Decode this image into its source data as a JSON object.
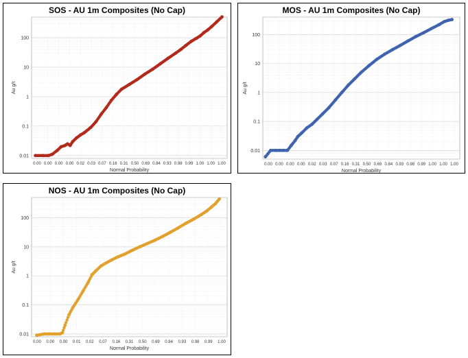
{
  "charts": [
    {
      "title": "SOS - AU 1m Composites (No Cap)",
      "xlabel": "Normal Probability",
      "ylabel": "Au g/t",
      "ytick_labels": [
        "0.01",
        "0.1",
        "1",
        "10",
        "100"
      ],
      "xtick_labels": [
        "0.00",
        "0.00",
        "0.00",
        "0.00",
        "0.02",
        "0.03",
        "0.07",
        "0.16",
        "0.31",
        "0.50",
        "0.69",
        "0.84",
        "0.93",
        "0.98",
        "0.99",
        "1.00",
        "1.00",
        "1.00"
      ]
    },
    {
      "title": "MOS - AU 1m Composites (No Cap)",
      "xlabel": "Normal Probability",
      "ylabel": "Au g/t",
      "ytick_labels": [
        "0.01",
        "0.1",
        "1",
        "10",
        "100"
      ],
      "xtick_labels": [
        "0.00",
        "0.00",
        "0.00",
        "0.00",
        "0.02",
        "0.03",
        "0.07",
        "0.16",
        "0.31",
        "0.50",
        "0.69",
        "0.84",
        "0.93",
        "0.98",
        "0.99",
        "1.00",
        "1.00",
        "1.00"
      ]
    },
    {
      "title": "NOS - AU 1m Composites (No Cap)",
      "xlabel": "Normal Probability",
      "ylabel": "Au g/t",
      "ytick_labels": [
        "0.01",
        "0.1",
        "1",
        "10",
        "100"
      ],
      "xtick_labels": [
        "0.00",
        "0.00",
        "0.00",
        "0.01",
        "0.02",
        "0.07",
        "0.16",
        "0.31",
        "0.50",
        "0.69",
        "0.84",
        "0.93",
        "0.98",
        "0.99",
        "1.00"
      ]
    }
  ],
  "chart_data": [
    {
      "type": "scatter",
      "title": "SOS - AU 1m Composites (No Cap)",
      "xlabel": "Normal Probability",
      "ylabel": "Au g/t",
      "y_scale": "log",
      "grid": true,
      "color": "#b22a1c",
      "x_scale": "normal probability (z-score, -3.8 to 3.8)",
      "xlim_z": [
        -3.8,
        3.8
      ],
      "ylim": [
        0.008,
        500
      ],
      "series": [
        {
          "z": [
            -3.65,
            -3.35,
            -3.15,
            -3.0,
            -2.8,
            -2.65,
            -2.5,
            -2.4,
            -2.3,
            -2.2,
            -2.05,
            -1.9,
            -1.75,
            -1.5,
            -1.3,
            -1.1,
            -0.9,
            -0.7,
            -0.5,
            -0.3,
            0.0,
            0.3,
            0.6,
            0.9,
            1.2,
            1.5,
            1.8,
            2.0,
            2.2,
            2.4,
            2.6,
            2.75,
            2.9,
            3.05,
            3.2,
            3.4,
            3.6
          ],
          "y": [
            0.01,
            0.01,
            0.01,
            0.011,
            0.015,
            0.02,
            0.022,
            0.025,
            0.022,
            0.03,
            0.04,
            0.05,
            0.06,
            0.09,
            0.14,
            0.25,
            0.42,
            0.75,
            1.2,
            1.8,
            2.6,
            3.8,
            5.8,
            8.5,
            13,
            20,
            30,
            40,
            55,
            75,
            95,
            115,
            150,
            185,
            240,
            350,
            510
          ]
        }
      ]
    },
    {
      "type": "scatter",
      "title": "MOS - AU 1m Composites (No Cap)",
      "xlabel": "Normal Probability",
      "ylabel": "Au g/t",
      "y_scale": "log",
      "grid": true,
      "color": "#3f63ae",
      "x_scale": "normal probability (z-score, -3.8 to 3.8)",
      "xlim_z": [
        -3.8,
        3.8
      ],
      "ylim": [
        0.005,
        400
      ],
      "series": [
        {
          "z": [
            -3.7,
            -3.5,
            -3.3,
            -3.15,
            -3.0,
            -2.85,
            -2.7,
            -2.55,
            -2.45,
            -2.3,
            -2.1,
            -1.9,
            -1.7,
            -1.5,
            -1.25,
            -1.0,
            -0.75,
            -0.5,
            -0.25,
            0.0,
            0.3,
            0.6,
            0.9,
            1.2,
            1.5,
            1.8,
            2.1,
            2.4,
            2.7,
            3.0,
            3.2,
            3.35,
            3.5
          ],
          "y": [
            0.006,
            0.01,
            0.01,
            0.01,
            0.01,
            0.01,
            0.015,
            0.022,
            0.03,
            0.04,
            0.06,
            0.08,
            0.12,
            0.18,
            0.3,
            0.55,
            1.0,
            1.8,
            3.0,
            5.0,
            8.5,
            14,
            21,
            30,
            42,
            60,
            85,
            115,
            160,
            220,
            280,
            310,
            330
          ]
        }
      ]
    },
    {
      "type": "scatter",
      "title": "NOS - AU 1m Composites (No Cap)",
      "xlabel": "Normal Probability",
      "ylabel": "Au g/t",
      "y_scale": "log",
      "grid": true,
      "color": "#e2a02c",
      "x_scale": "normal probability (z-score, -3.8 to 3.8)",
      "xlim_z": [
        -3.8,
        3.8
      ],
      "ylim": [
        0.008,
        500
      ],
      "series": [
        {
          "z": [
            -3.6,
            -3.3,
            -3.1,
            -2.9,
            -2.7,
            -2.6,
            -2.5,
            -2.35,
            -2.2,
            -2.0,
            -1.8,
            -1.6,
            -1.45,
            -1.3,
            -1.1,
            -0.9,
            -0.7,
            -0.45,
            -0.2,
            0.1,
            0.4,
            0.7,
            1.0,
            1.3,
            1.6,
            1.9,
            2.2,
            2.5,
            2.8,
            3.0,
            3.2,
            3.35,
            3.5
          ],
          "y": [
            0.009,
            0.01,
            0.01,
            0.01,
            0.01,
            0.011,
            0.02,
            0.045,
            0.08,
            0.15,
            0.3,
            0.6,
            1.1,
            1.5,
            2.2,
            2.8,
            3.5,
            4.5,
            5.5,
            7.5,
            10,
            13,
            17,
            23,
            32,
            45,
            65,
            90,
            130,
            170,
            240,
            310,
            450
          ]
        }
      ]
    }
  ]
}
